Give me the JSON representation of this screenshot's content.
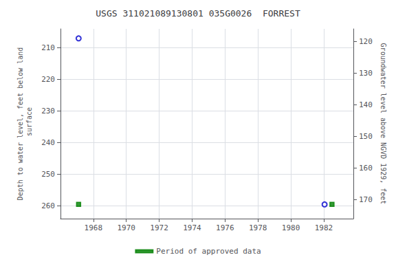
{
  "chart_data": {
    "type": "scatter",
    "title": "USGS 311021089130801 035G0026  FORREST",
    "ylabel": "Depth to water level, feet below land\n surface",
    "y2label": "Groundwater level above NGVD 1929, feet",
    "xlim": [
      1966.0,
      1983.8
    ],
    "ylim": [
      264,
      204
    ],
    "y2lim": [
      176,
      116
    ],
    "xticks": [
      1968,
      1970,
      1972,
      1974,
      1976,
      1978,
      1980,
      1982
    ],
    "yticks": [
      210,
      220,
      230,
      240,
      250,
      260
    ],
    "y2ticks": [
      170,
      160,
      150,
      140,
      130,
      120
    ],
    "grid": true,
    "legend": "bottom",
    "series": [
      {
        "x": [
          1967.1,
          1982.05
        ],
        "values": [
          207.0,
          259.5
        ],
        "color": "#0000cc",
        "marker": "open_circle"
      },
      {
        "name": "Period of approved data",
        "x": [
          1967.1,
          1982.5
        ],
        "values": [
          259.5,
          259.5
        ],
        "color": "#008000",
        "marker": "square"
      }
    ]
  }
}
